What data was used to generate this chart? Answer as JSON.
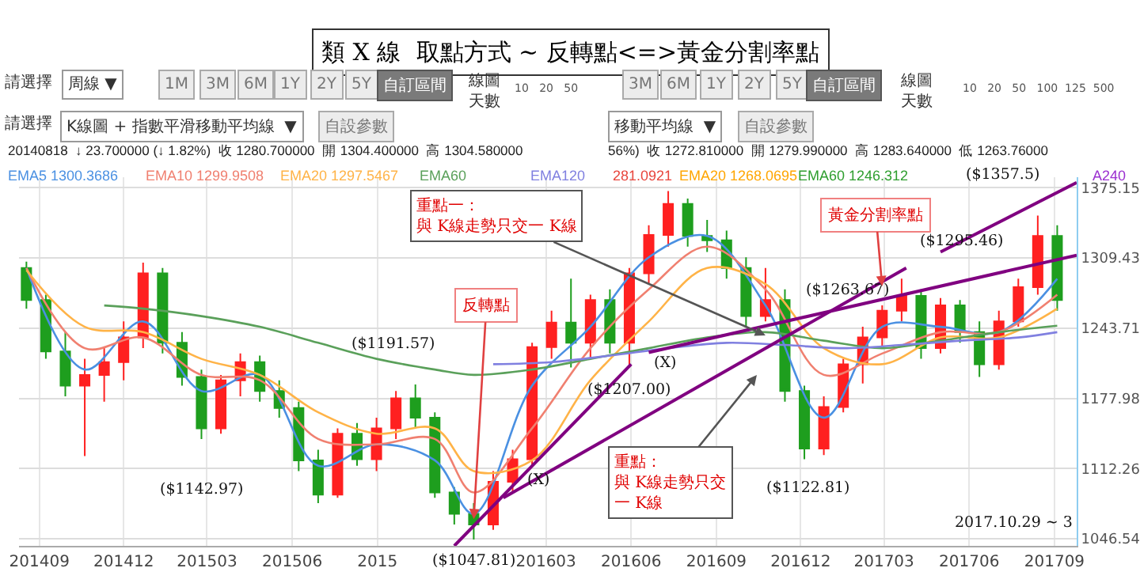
{
  "chart_data": {
    "type": "candlestick",
    "title": "類 X 線  取點方式 ~ 反轉點<=>黃金分割率點",
    "x": [
      "2014-08-18",
      "2014-09-08",
      "2014-09-29",
      "2014-10-20",
      "2014-11-10",
      "2014-12-01",
      "2014-12-22",
      "2015-01-12",
      "2015-02-02",
      "2015-02-23",
      "2015-03-16",
      "2015-04-06",
      "2015-04-27",
      "2015-05-18",
      "2015-06-08",
      "2015-06-29",
      "2015-07-20",
      "2015-08-10",
      "2015-08-31",
      "2015-09-21",
      "2015-10-12",
      "2015-11-02",
      "2015-11-23",
      "2015-12-14",
      "2016-01-04",
      "2016-01-25",
      "2016-02-15",
      "2016-03-07",
      "2016-03-28",
      "2016-04-18",
      "2016-05-09",
      "2016-05-30",
      "2016-06-20",
      "2016-07-11",
      "2016-08-01",
      "2016-08-22",
      "2016-09-12",
      "2016-10-03",
      "2016-10-24",
      "2016-11-14",
      "2016-12-05",
      "2016-12-26",
      "2017-01-16",
      "2017-02-06",
      "2017-02-27",
      "2017-03-20",
      "2017-04-10",
      "2017-05-01",
      "2017-05-22",
      "2017-06-12",
      "2017-07-03",
      "2017-07-24",
      "2017-08-14",
      "2017-09-04"
    ],
    "ohlc": [
      [
        1300,
        1306,
        1262,
        1270
      ],
      [
        1270,
        1275,
        1215,
        1222
      ],
      [
        1222,
        1240,
        1180,
        1190
      ],
      [
        1190,
        1215,
        1124,
        1200
      ],
      [
        1200,
        1225,
        1175,
        1212
      ],
      [
        1212,
        1250,
        1195,
        1235
      ],
      [
        1235,
        1305,
        1225,
        1295
      ],
      [
        1295,
        1300,
        1220,
        1230
      ],
      [
        1230,
        1240,
        1190,
        1198
      ],
      [
        1198,
        1205,
        1140,
        1150
      ],
      [
        1150,
        1200,
        1145,
        1195
      ],
      [
        1195,
        1220,
        1180,
        1212
      ],
      [
        1212,
        1218,
        1175,
        1185
      ],
      [
        1185,
        1195,
        1160,
        1169
      ],
      [
        1169,
        1175,
        1110,
        1120
      ],
      [
        1120,
        1130,
        1080,
        1088
      ],
      [
        1088,
        1150,
        1085,
        1145
      ],
      [
        1145,
        1155,
        1115,
        1121
      ],
      [
        1121,
        1160,
        1110,
        1150
      ],
      [
        1150,
        1185,
        1140,
        1178
      ],
      [
        1178,
        1191,
        1150,
        1160
      ],
      [
        1160,
        1165,
        1085,
        1090
      ],
      [
        1090,
        1095,
        1060,
        1070
      ],
      [
        1070,
        1080,
        1046,
        1060
      ],
      [
        1060,
        1110,
        1055,
        1100
      ],
      [
        1100,
        1130,
        1090,
        1121
      ],
      [
        1121,
        1230,
        1115,
        1226
      ],
      [
        1226,
        1260,
        1215,
        1249
      ],
      [
        1249,
        1290,
        1207,
        1230
      ],
      [
        1230,
        1275,
        1215,
        1270
      ],
      [
        1270,
        1280,
        1220,
        1230
      ],
      [
        1230,
        1300,
        1207,
        1295
      ],
      [
        1295,
        1340,
        1285,
        1331
      ],
      [
        1331,
        1372,
        1320,
        1360
      ],
      [
        1360,
        1365,
        1320,
        1330
      ],
      [
        1330,
        1345,
        1315,
        1326
      ],
      [
        1326,
        1335,
        1290,
        1300
      ],
      [
        1300,
        1310,
        1245,
        1255
      ],
      [
        1255,
        1300,
        1250,
        1270
      ],
      [
        1270,
        1280,
        1175,
        1185
      ],
      [
        1185,
        1190,
        1121,
        1131
      ],
      [
        1131,
        1180,
        1125,
        1170
      ],
      [
        1170,
        1215,
        1165,
        1210
      ],
      [
        1210,
        1245,
        1192,
        1235
      ],
      [
        1235,
        1265,
        1225,
        1260
      ],
      [
        1260,
        1290,
        1250,
        1274
      ],
      [
        1274,
        1280,
        1215,
        1225
      ],
      [
        1225,
        1272,
        1220,
        1265
      ],
      [
        1265,
        1270,
        1230,
        1240
      ],
      [
        1240,
        1250,
        1198,
        1210
      ],
      [
        1210,
        1260,
        1205,
        1250
      ],
      [
        1250,
        1290,
        1245,
        1282
      ],
      [
        1282,
        1349,
        1275,
        1330
      ],
      [
        1330,
        1340,
        1260,
        1270
      ]
    ],
    "series": [
      {
        "type": "line",
        "name": "EMA5 1300.3686",
        "color": "#4a90e2",
        "x": [
          "2014-08-18",
          "2014-10-20",
          "2014-12-22",
          "2015-02-23",
          "2015-04-27",
          "2015-06-29",
          "2015-08-31",
          "2015-11-02",
          "2015-12-14",
          "2016-02-15",
          "2016-04-18",
          "2016-06-20",
          "2016-08-22",
          "2016-10-24",
          "2016-12-26",
          "2017-02-27",
          "2017-05-01",
          "2017-07-03",
          "2017-09-04"
        ],
        "values": [
          1300,
          1205,
          1250,
          1185,
          1200,
          1115,
          1135,
          1120,
          1070,
          1190,
          1245,
          1310,
          1330,
          1265,
          1160,
          1245,
          1245,
          1240,
          1290
        ]
      },
      {
        "type": "line",
        "name": "EMA10 1299.9508",
        "color": "#f08070",
        "x": [
          "2014-08-18",
          "2014-10-20",
          "2014-12-22",
          "2015-02-23",
          "2015-04-27",
          "2015-06-29",
          "2015-08-31",
          "2015-11-02",
          "2015-12-14",
          "2016-02-15",
          "2016-04-18",
          "2016-06-20",
          "2016-08-22",
          "2016-10-24",
          "2016-12-26",
          "2017-02-27",
          "2017-05-01",
          "2017-07-03",
          "2017-09-04"
        ],
        "values": [
          1300,
          1225,
          1235,
          1200,
          1195,
          1140,
          1135,
          1140,
          1090,
          1150,
          1225,
          1280,
          1320,
          1280,
          1200,
          1220,
          1240,
          1240,
          1275
        ]
      },
      {
        "type": "line",
        "name": "EMA20 1297.5467",
        "color": "#ffb347",
        "x": [
          "2014-08-18",
          "2014-10-20",
          "2014-12-22",
          "2015-02-23",
          "2015-04-27",
          "2015-06-29",
          "2015-08-31",
          "2015-11-02",
          "2015-12-14",
          "2016-02-15",
          "2016-04-18",
          "2016-06-20",
          "2016-08-22",
          "2016-10-24",
          "2016-12-26",
          "2017-02-27",
          "2017-05-01",
          "2017-07-03",
          "2017-09-04"
        ],
        "values": [
          1298,
          1245,
          1240,
          1215,
          1200,
          1165,
          1145,
          1150,
          1110,
          1120,
          1195,
          1250,
          1300,
          1285,
          1225,
          1210,
          1235,
          1235,
          1262
        ]
      },
      {
        "type": "line",
        "name": "EMA60",
        "color": "#5aa05a",
        "x": [
          "2014-11-10",
          "2014-12-22",
          "2015-02-23",
          "2015-04-27",
          "2015-06-29",
          "2015-08-31",
          "2015-11-02",
          "2015-12-14",
          "2016-02-15",
          "2016-04-18",
          "2016-06-20",
          "2016-08-22",
          "2016-10-24",
          "2016-12-26",
          "2017-02-27",
          "2017-05-01",
          "2017-07-03",
          "2017-09-04"
        ],
        "values": [
          1265,
          1262,
          1255,
          1245,
          1230,
          1215,
          1205,
          1200,
          1205,
          1215,
          1225,
          1235,
          1240,
          1232,
          1225,
          1232,
          1240,
          1246
        ]
      },
      {
        "type": "line",
        "name": "EMA120",
        "color": "#8080e0",
        "x": [
          "2016-01-04",
          "2016-03-07",
          "2016-05-09",
          "2016-07-11",
          "2016-09-12",
          "2016-11-14",
          "2017-01-16",
          "2017-03-20",
          "2017-05-22",
          "2017-07-24",
          "2017-09-04"
        ],
        "values": [
          1210,
          1212,
          1218,
          1225,
          1230,
          1228,
          1225,
          1228,
          1232,
          1235,
          1240
        ]
      },
      {
        "type": "line",
        "color": "#800080",
        "x": [
          "2015-11-23",
          "2016-06-01"
        ],
        "values": [
          1040,
          1210
        ]
      },
      {
        "type": "line",
        "color": "#800080",
        "x": [
          "2016-01-15",
          "2017-03-25"
        ],
        "values": [
          1085,
          1300
        ]
      },
      {
        "type": "line",
        "color": "#800080",
        "x": [
          "2016-06-20",
          "2017-09-25"
        ],
        "values": [
          1221,
          1312
        ]
      },
      {
        "type": "line",
        "color": "#800080",
        "x": [
          "2017-05-01",
          "2017-09-25"
        ],
        "values": [
          1315,
          1380
        ]
      }
    ],
    "xlim": [
      "2014-08-10",
      "2017-09-25"
    ],
    "xticks": [
      {
        "value": "2014-09-01",
        "label": "201409"
      },
      {
        "value": "2014-12-01",
        "label": "201412"
      },
      {
        "value": "2015-03-01",
        "label": "201503"
      },
      {
        "value": "2015-06-01",
        "label": "201506"
      },
      {
        "value": "2015-09-01",
        "label": "2015"
      },
      {
        "value": "2016-03-01",
        "label": "201603"
      },
      {
        "value": "2016-06-01",
        "label": "201606"
      },
      {
        "value": "2016-09-01",
        "label": "201609"
      },
      {
        "value": "2016-12-01",
        "label": "201612"
      },
      {
        "value": "2017-03-01",
        "label": "201703"
      },
      {
        "value": "2017-06-01",
        "label": "201706"
      },
      {
        "value": "2017-09-01",
        "label": "201709"
      }
    ],
    "ylim": [
      1040,
      1385
    ],
    "yticks": [
      1046.54,
      1112.26,
      1177.98,
      1243.71,
      1309.43,
      1375.15
    ],
    "grid": true,
    "legend": "top left",
    "annotations": [
      "請選擇",
      "周線 ▼",
      "1M",
      "3M",
      "6M",
      "1Y",
      "2Y",
      "5Y",
      "自訂區間",
      "線圖天數",
      "10   20   50",
      "3M",
      "6M",
      "1Y",
      "2Y",
      "5Y",
      "自訂區間",
      "線圖天數",
      "10   20   50   100  125  500",
      "請選擇",
      "K線圖 + 指數平滑移動平均線  ▼",
      "自設參數",
      "移動平均線  ▼",
      "自設參數",
      "20140818  ↓ 23.700000 (↓ 1.82%)  收 1280.700000  開 1304.400000  高 1304.580000",
      "56%)  收 1272.810000  開 1279.990000  高 1283.640000  低 1263.76000",
      "281.0921",
      "EMA20 1268.0695",
      "EMA60 1246.312",
      "A240",
      {
        "text": "($1357.5)",
        "x": "2017-08-14",
        "y": 1349
      },
      {
        "text": "($1295.46)",
        "x": "2017-03-20",
        "y": 1290
      },
      {
        "text": "($1263.67)",
        "x": "2017-02-27",
        "y": 1265
      },
      {
        "text": "($1207.00)",
        "x": "2016-05-30",
        "y": 1207
      },
      {
        "text": "($1191.57)",
        "x": "2015-10-12",
        "y": 1191
      },
      {
        "text": "($1142.97)",
        "x": "2015-02-23",
        "y": 1140
      },
      {
        "text": "($1047.81)",
        "x": "2015-12-14",
        "y": 1046
      },
      {
        "text": "($1122.81)",
        "x": "2016-12-05",
        "y": 1121
      },
      "(X)",
      "(X)",
      {
        "text": "反轉點",
        "x": "2015-12-14",
        "y": 1065
      },
      {
        "text": "黃金分割率點",
        "x": "2017-02-27",
        "y": 1283
      },
      {
        "text": "重點一：與 K線走勢只交一 K線",
        "x": "2016-10-24",
        "y": 1237
      },
      "重點：與 K線走勢只交一 K線",
      "2017.10.29 ~ 3"
    ]
  }
}
